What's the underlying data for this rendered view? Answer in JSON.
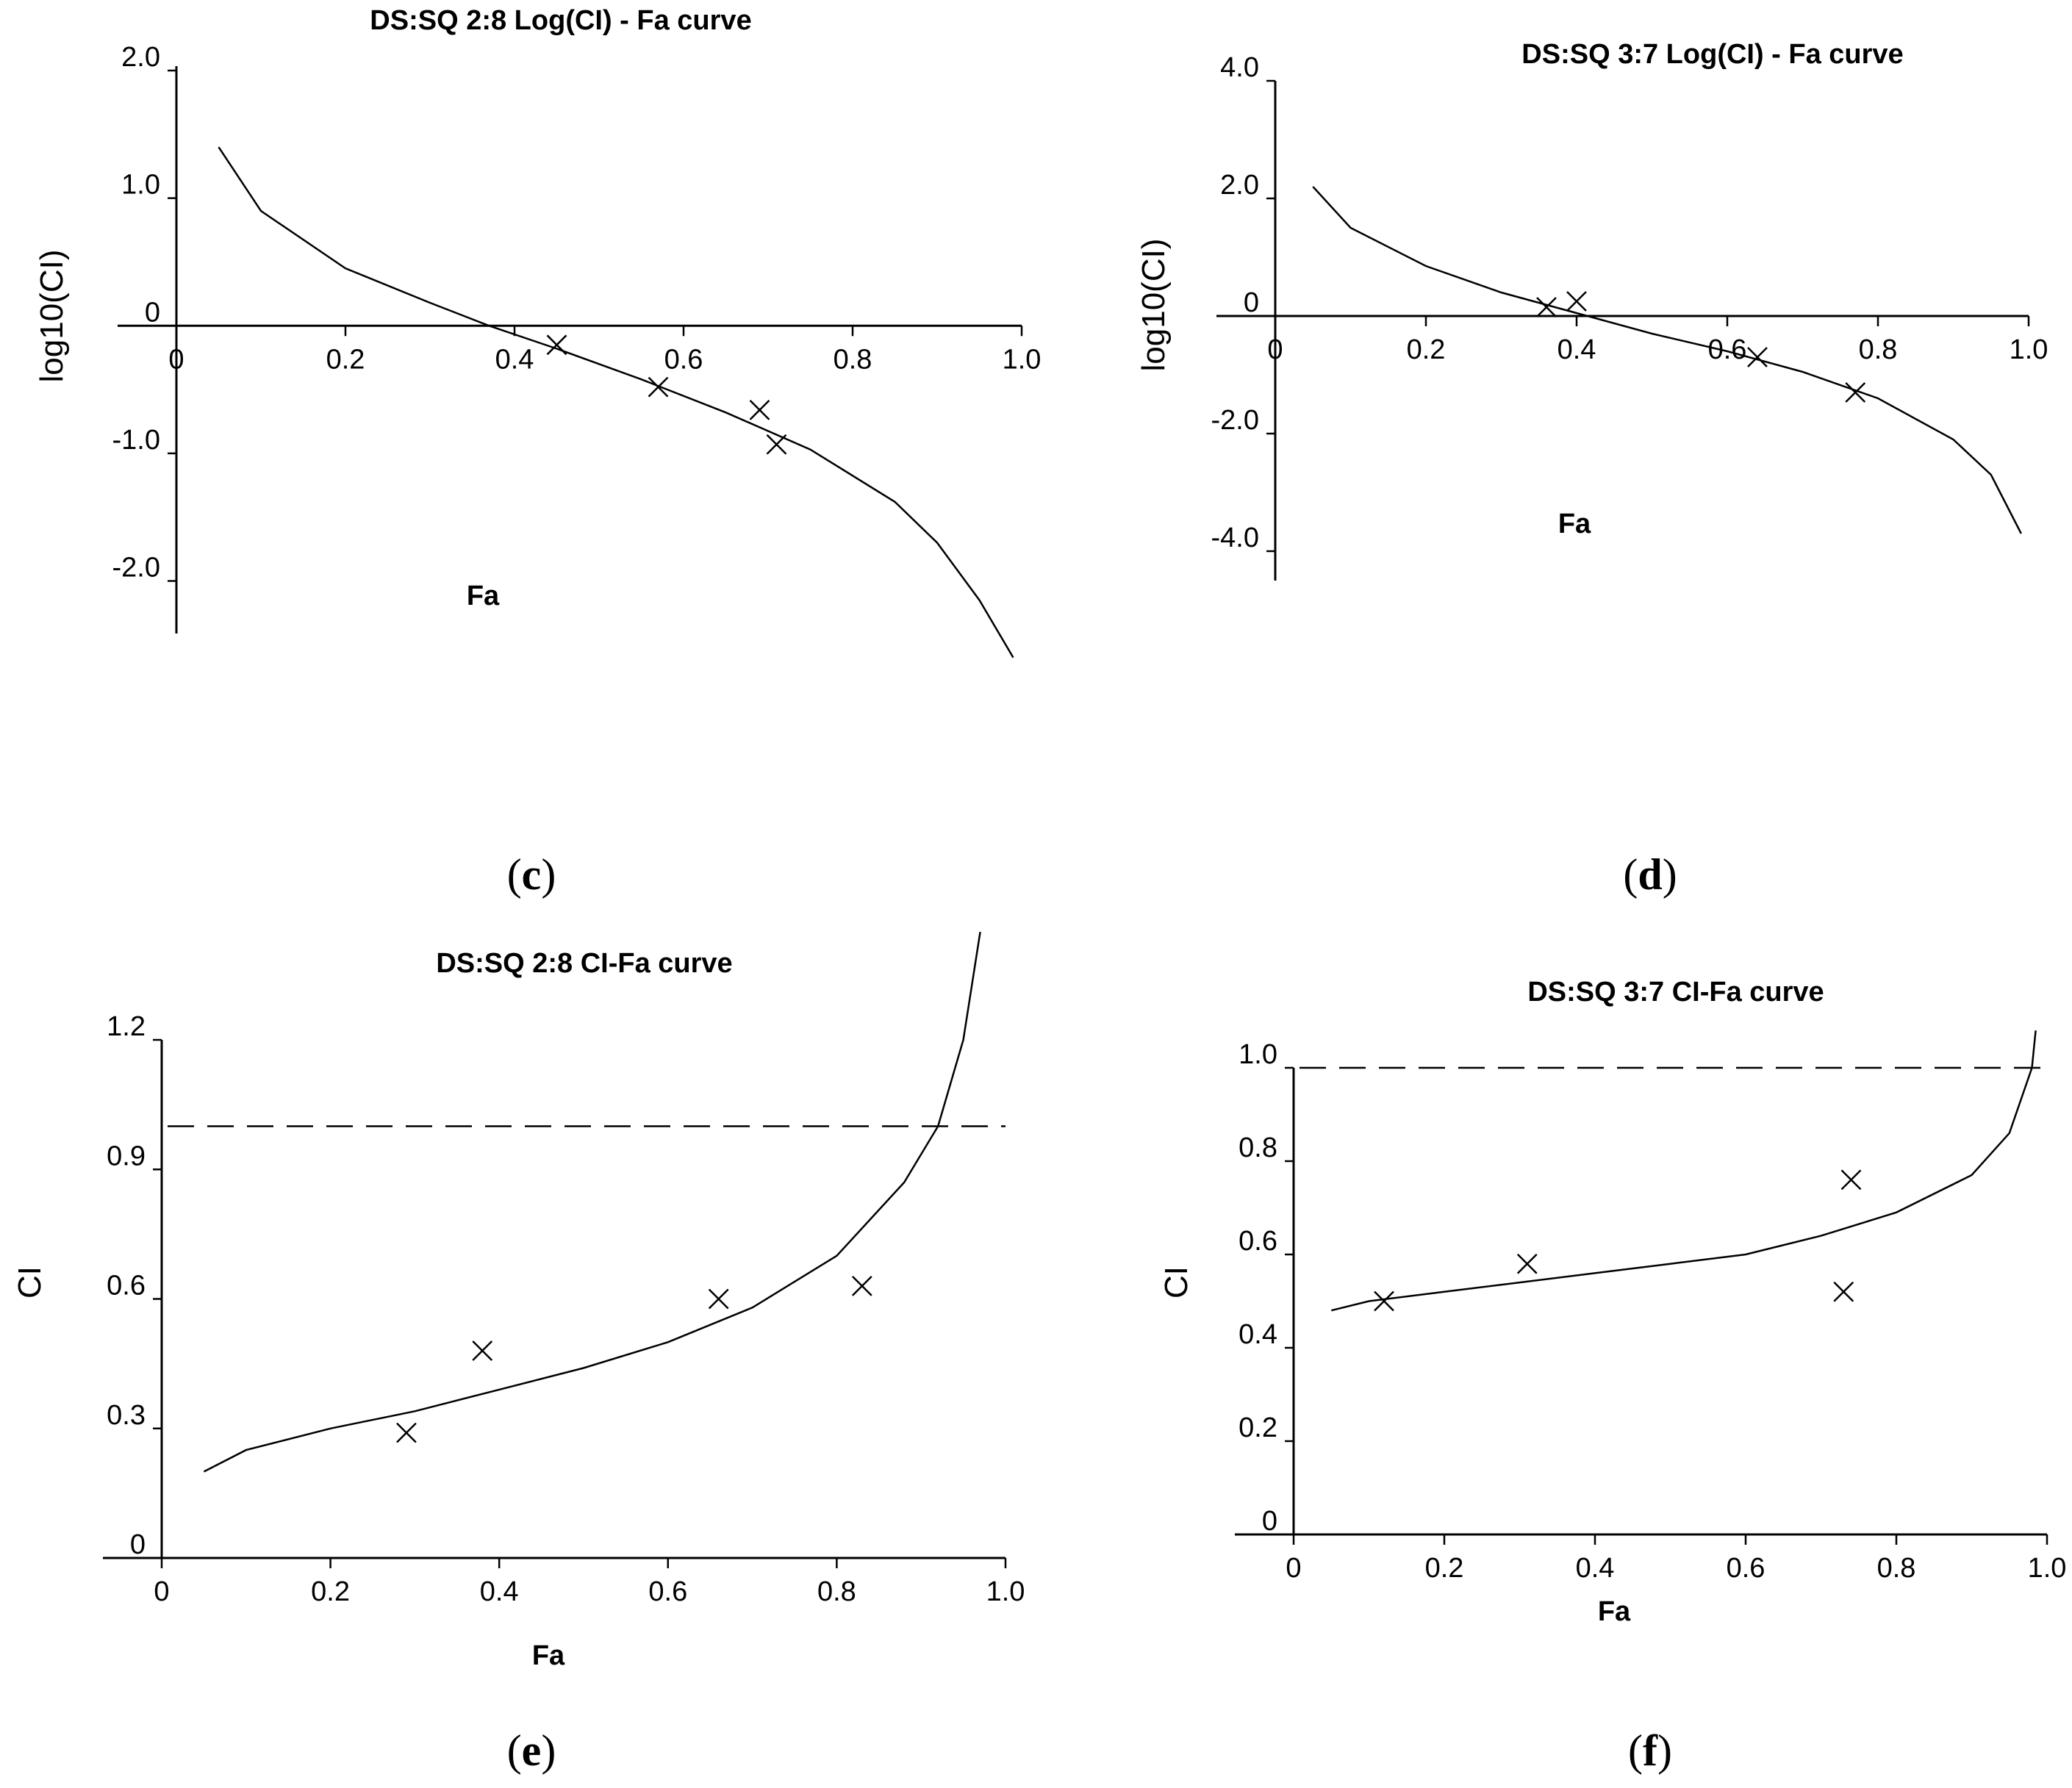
{
  "chart_data": [
    {
      "id": "c",
      "type": "scatter",
      "title": "DS:SQ 2:8 Log(CI) - Fa curve",
      "xlabel": "Fa",
      "ylabel": "log10(CI)",
      "caption": "c",
      "xlim": [
        0,
        1.0
      ],
      "ylim": [
        -2.4,
        2.0
      ],
      "x_ticks": [
        "0",
        "0.2",
        "0.4",
        "0.6",
        "0.8",
        "1.0"
      ],
      "y_ticks": [
        "2.0",
        "1.0",
        "0",
        "-1.0",
        "-2.0"
      ],
      "reference_line": null,
      "points": [
        {
          "x": 0.45,
          "y": -0.15
        },
        {
          "x": 0.57,
          "y": -0.48
        },
        {
          "x": 0.69,
          "y": -0.66
        },
        {
          "x": 0.71,
          "y": -0.93
        }
      ],
      "curve": [
        {
          "x": 0.05,
          "y": 1.4
        },
        {
          "x": 0.1,
          "y": 0.9
        },
        {
          "x": 0.2,
          "y": 0.45
        },
        {
          "x": 0.3,
          "y": 0.18
        },
        {
          "x": 0.37,
          "y": 0.0
        },
        {
          "x": 0.45,
          "y": -0.18
        },
        {
          "x": 0.55,
          "y": -0.42
        },
        {
          "x": 0.65,
          "y": -0.68
        },
        {
          "x": 0.75,
          "y": -0.97
        },
        {
          "x": 0.85,
          "y": -1.38
        },
        {
          "x": 0.9,
          "y": -1.7
        },
        {
          "x": 0.95,
          "y": -2.15
        },
        {
          "x": 0.99,
          "y": -2.6
        }
      ]
    },
    {
      "id": "d",
      "type": "scatter",
      "title": "DS:SQ 3:7 Log(CI) - Fa curve",
      "xlabel": "Fa",
      "ylabel": "log10(CI)",
      "caption": "d",
      "xlim": [
        0,
        1.0
      ],
      "ylim": [
        -4.5,
        4.0
      ],
      "x_ticks": [
        "0",
        "0.2",
        "0.4",
        "0.6",
        "0.8",
        "1.0"
      ],
      "y_ticks": [
        "4.0",
        "2.0",
        "0",
        "-2.0",
        "-4.0"
      ],
      "reference_line": null,
      "points": [
        {
          "x": 0.36,
          "y": 0.15
        },
        {
          "x": 0.4,
          "y": 0.25
        },
        {
          "x": 0.64,
          "y": -0.7
        },
        {
          "x": 0.77,
          "y": -1.3
        }
      ],
      "curve": [
        {
          "x": 0.05,
          "y": 2.2
        },
        {
          "x": 0.1,
          "y": 1.5
        },
        {
          "x": 0.2,
          "y": 0.85
        },
        {
          "x": 0.3,
          "y": 0.4
        },
        {
          "x": 0.4,
          "y": 0.05
        },
        {
          "x": 0.5,
          "y": -0.3
        },
        {
          "x": 0.6,
          "y": -0.6
        },
        {
          "x": 0.7,
          "y": -0.95
        },
        {
          "x": 0.8,
          "y": -1.4
        },
        {
          "x": 0.9,
          "y": -2.1
        },
        {
          "x": 0.95,
          "y": -2.7
        },
        {
          "x": 0.99,
          "y": -3.7
        }
      ]
    },
    {
      "id": "e",
      "type": "scatter",
      "title": "DS:SQ 2:8 CI-Fa curve",
      "xlabel": "Fa",
      "ylabel": "CI",
      "caption": "e",
      "xlim": [
        0,
        1.0
      ],
      "ylim": [
        0,
        1.2
      ],
      "x_ticks": [
        "0",
        "0.2",
        "0.4",
        "0.6",
        "0.8",
        "1.0"
      ],
      "y_ticks": [
        "1.2",
        "0.9",
        "0.6",
        "0.3",
        "0"
      ],
      "reference_line": 1.0,
      "points": [
        {
          "x": 0.29,
          "y": 0.29
        },
        {
          "x": 0.38,
          "y": 0.48
        },
        {
          "x": 0.66,
          "y": 0.6
        },
        {
          "x": 0.83,
          "y": 0.63
        }
      ],
      "curve": [
        {
          "x": 0.05,
          "y": 0.2
        },
        {
          "x": 0.1,
          "y": 0.25
        },
        {
          "x": 0.2,
          "y": 0.3
        },
        {
          "x": 0.3,
          "y": 0.34
        },
        {
          "x": 0.4,
          "y": 0.39
        },
        {
          "x": 0.5,
          "y": 0.44
        },
        {
          "x": 0.6,
          "y": 0.5
        },
        {
          "x": 0.7,
          "y": 0.58
        },
        {
          "x": 0.8,
          "y": 0.7
        },
        {
          "x": 0.88,
          "y": 0.87
        },
        {
          "x": 0.92,
          "y": 1.0
        },
        {
          "x": 0.95,
          "y": 1.2
        },
        {
          "x": 0.97,
          "y": 1.45
        }
      ]
    },
    {
      "id": "f",
      "type": "scatter",
      "title": "DS:SQ 3:7 CI-Fa curve",
      "xlabel": "Fa",
      "ylabel": "CI",
      "caption": "f",
      "xlim": [
        0,
        1.0
      ],
      "ylim": [
        0,
        1.0
      ],
      "x_ticks": [
        "0",
        "0.2",
        "0.4",
        "0.6",
        "0.8",
        "1.0"
      ],
      "y_ticks": [
        "1.0",
        "0.8",
        "0.6",
        "0.4",
        "0.2",
        "0"
      ],
      "reference_line": 1.0,
      "points": [
        {
          "x": 0.12,
          "y": 0.5
        },
        {
          "x": 0.31,
          "y": 0.58
        },
        {
          "x": 0.73,
          "y": 0.52
        },
        {
          "x": 0.74,
          "y": 0.76
        }
      ],
      "curve": [
        {
          "x": 0.05,
          "y": 0.48
        },
        {
          "x": 0.1,
          "y": 0.5
        },
        {
          "x": 0.2,
          "y": 0.52
        },
        {
          "x": 0.3,
          "y": 0.54
        },
        {
          "x": 0.4,
          "y": 0.56
        },
        {
          "x": 0.5,
          "y": 0.58
        },
        {
          "x": 0.6,
          "y": 0.6
        },
        {
          "x": 0.7,
          "y": 0.64
        },
        {
          "x": 0.8,
          "y": 0.69
        },
        {
          "x": 0.9,
          "y": 0.77
        },
        {
          "x": 0.95,
          "y": 0.86
        },
        {
          "x": 0.98,
          "y": 1.0
        },
        {
          "x": 0.985,
          "y": 1.08
        }
      ]
    }
  ]
}
